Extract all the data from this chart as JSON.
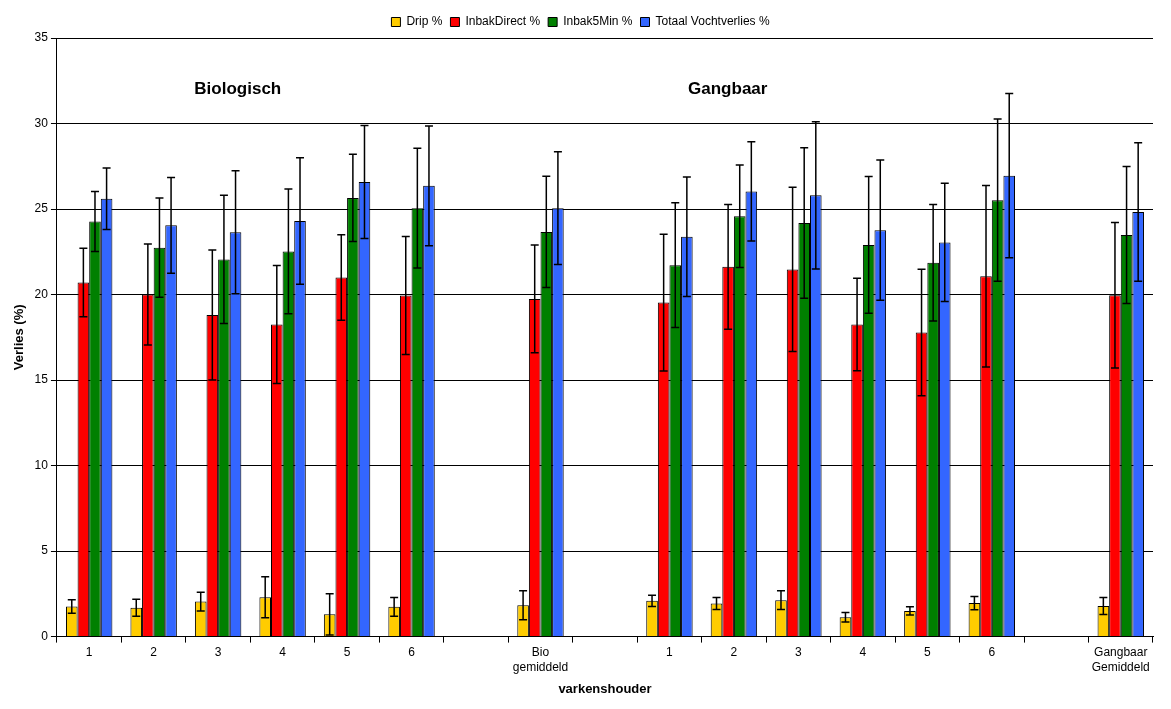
{
  "chart_data": {
    "type": "bar",
    "xlabel": "varkenshouder",
    "ylabel": "Verlies (%)",
    "annotations": [
      "Biologisch",
      "Gangbaar"
    ],
    "categories": [
      "1",
      "2",
      "3",
      "4",
      "5",
      "6",
      null,
      "Bio gemiddeld",
      null,
      "1",
      "2",
      "3",
      "4",
      "5",
      "6",
      null,
      "Gangbaar Gemiddeld"
    ],
    "series": [
      {
        "name": "Drip %",
        "color": "#ffcc00",
        "values": [
          1.76,
          1.69,
          2.05,
          2.3,
          1.3,
          1.74,
          null,
          1.83,
          null,
          2.09,
          1.94,
          2.13,
          1.13,
          1.5,
          1.96,
          null,
          1.79
        ],
        "errors": [
          0.4,
          0.5,
          0.55,
          1.2,
          1.2,
          0.55,
          null,
          0.85,
          null,
          0.33,
          0.35,
          0.55,
          0.28,
          0.24,
          0.39,
          null,
          0.5
        ]
      },
      {
        "name": "InbakDirect %",
        "color": "#ff0000",
        "values": [
          20.7,
          20.0,
          18.8,
          18.25,
          21.0,
          19.95,
          null,
          19.74,
          null,
          19.53,
          21.62,
          21.47,
          18.25,
          17.78,
          21.07,
          null,
          19.96
        ],
        "errors": [
          2.0,
          2.95,
          3.8,
          3.45,
          2.5,
          3.45,
          null,
          3.15,
          null,
          4.0,
          3.65,
          4.8,
          2.7,
          3.7,
          5.3,
          null,
          4.25
        ]
      },
      {
        "name": "Inbak5Min %",
        "color": "#008000",
        "values": [
          24.27,
          22.74,
          22.05,
          22.52,
          25.65,
          25.05,
          null,
          23.66,
          null,
          21.72,
          24.58,
          24.19,
          22.9,
          21.86,
          25.52,
          null,
          23.48
        ],
        "errors": [
          1.75,
          2.9,
          3.75,
          3.65,
          2.55,
          3.5,
          null,
          3.25,
          null,
          3.65,
          3.0,
          4.4,
          4.0,
          3.4,
          4.75,
          null,
          4.0
        ]
      },
      {
        "name": "Totaal Vochtverlies %",
        "color": "#3366ff",
        "values": [
          25.6,
          24.05,
          23.64,
          24.3,
          26.58,
          26.36,
          null,
          25.05,
          null,
          23.38,
          26.03,
          25.8,
          23.76,
          23.05,
          26.95,
          null,
          24.83
        ],
        "errors": [
          1.8,
          2.8,
          3.6,
          3.7,
          3.3,
          3.5,
          null,
          3.3,
          null,
          3.5,
          2.9,
          4.3,
          4.1,
          3.45,
          4.8,
          null,
          4.05
        ]
      }
    ],
    "ylim": [
      0,
      35
    ],
    "yticks": [
      0,
      5,
      10,
      15,
      20,
      25,
      30,
      35
    ],
    "grid": "y",
    "legend": "top"
  }
}
